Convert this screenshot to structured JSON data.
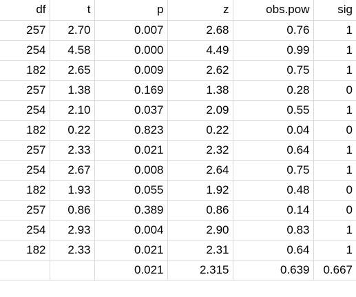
{
  "table": {
    "header": [
      "df",
      "t",
      "p",
      "z",
      "obs.pow",
      "sig"
    ],
    "rows": [
      [
        "257",
        "2.70",
        "0.007",
        "2.68",
        "0.76",
        "1"
      ],
      [
        "254",
        "4.58",
        "0.000",
        "4.49",
        "0.99",
        "1"
      ],
      [
        "182",
        "2.65",
        "0.009",
        "2.62",
        "0.75",
        "1"
      ],
      [
        "257",
        "1.38",
        "0.169",
        "1.38",
        "0.28",
        "0"
      ],
      [
        "254",
        "2.10",
        "0.037",
        "2.09",
        "0.55",
        "1"
      ],
      [
        "182",
        "0.22",
        "0.823",
        "0.22",
        "0.04",
        "0"
      ],
      [
        "257",
        "2.33",
        "0.021",
        "2.32",
        "0.64",
        "1"
      ],
      [
        "254",
        "2.67",
        "0.008",
        "2.64",
        "0.75",
        "1"
      ],
      [
        "182",
        "1.93",
        "0.055",
        "1.92",
        "0.48",
        "0"
      ],
      [
        "257",
        "0.86",
        "0.389",
        "0.86",
        "0.14",
        "0"
      ],
      [
        "254",
        "2.93",
        "0.004",
        "2.90",
        "0.83",
        "1"
      ],
      [
        "182",
        "2.33",
        "0.021",
        "2.31",
        "0.64",
        "1"
      ]
    ],
    "summary": [
      "0.021",
      "2.315",
      "0.639",
      "0.667"
    ]
  }
}
